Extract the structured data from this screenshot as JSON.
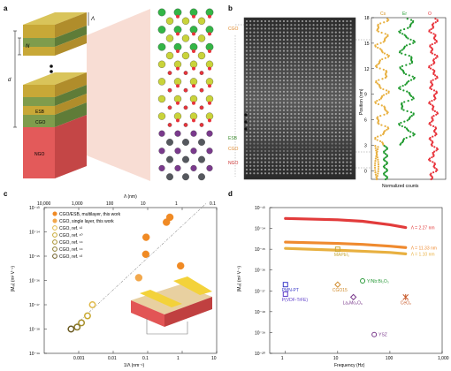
{
  "panels": {
    "a": {
      "letter": "a",
      "labels": {
        "lambda": "Λ",
        "n": "N",
        "d": "d",
        "esb": "ESB",
        "cgo": "CGO",
        "ngo": "NGO"
      }
    },
    "b": {
      "letter": "b",
      "left_labels": {
        "cgo_top": "CGO",
        "esb": "ESB",
        "cgo_bottom": "CGO",
        "ngo": "NGO"
      },
      "legend": {
        "cs": "Cs",
        "er": "Er",
        "o": "O"
      },
      "colors": {
        "cs": "#e8b040",
        "er": "#1f9a2e",
        "o": "#e8343c"
      },
      "ylabel": "Position (nm)",
      "xlabel": "Normalized counts",
      "yticks": [
        "18",
        "15",
        "12",
        "9",
        "6",
        "3",
        "0"
      ]
    },
    "c": {
      "letter": "c",
      "top_axis_label": "Λ (nm)",
      "top_ticks": [
        "10,000",
        "1,000",
        "100",
        "10",
        "1",
        "0.1"
      ],
      "ylabel": "|Mₑₗ| (m² V⁻¹)",
      "xlabel": "1/Λ (nm⁻¹)",
      "yticks": [
        "10⁻¹³",
        "10⁻¹⁴",
        "10⁻¹⁵",
        "10⁻¹⁶",
        "10⁻¹⁷",
        "10⁻¹⁸",
        "10⁻¹⁹"
      ],
      "xticks": [
        "0.001",
        "0.01",
        "0.1",
        "1",
        "10"
      ],
      "legend": [
        "CGO/ESB, multilayer, this work",
        "CGO, single layer, this work",
        "CGO, ref. ¹²",
        "CGO, ref. ¹⁰",
        "CGO, ref. ¹⁴",
        "CGO, ref. ¹⁴",
        "CGO, ref. ¹³"
      ]
    },
    "d": {
      "letter": "d",
      "ylabel": "|Mₑₗ| (m² V⁻¹)",
      "xlabel": "Frequency (Hz)",
      "yticks": [
        "10⁻¹³",
        "10⁻¹⁴",
        "10⁻¹⁵",
        "10⁻¹⁶",
        "10⁻¹⁷",
        "10⁻¹⁸",
        "10⁻¹⁹",
        "10⁻²⁰"
      ],
      "xticks": [
        "1",
        "10",
        "100",
        "1,000"
      ],
      "curves": [
        {
          "label": "Λ = 2.27 nm",
          "color": "#e23b3b"
        },
        {
          "label": "Λ = 11.33 nm",
          "color": "#ef8a2f"
        },
        {
          "label": "Λ = 1.10 nm",
          "color": "#e8b040"
        }
      ],
      "materials": {
        "mapbi3": "MAPbI₃",
        "pmnpt": "PMN-PT",
        "pvdf": "P(VDF-TrFE)",
        "cgo15": "CGO15",
        "ynbo": "Y/Nb:Bi₂O₃",
        "lamo": "La₂Mo₂O₉",
        "ceo2": "CeO₂",
        "ysz": "YSZ"
      }
    }
  },
  "chart_data": [
    {
      "type": "scatter",
      "title": "",
      "xlabel": "1/Λ (nm⁻¹)",
      "ylabel": "|Mₑₗ| (m² V⁻¹)",
      "xscale": "log",
      "yscale": "log",
      "xlim": [
        0.0001,
        10
      ],
      "ylim": [
        1e-19,
        1e-13
      ],
      "series": [
        {
          "name": "CGO/ESB, multilayer, this work",
          "x": [
            0.088,
            0.09,
            0.35,
            0.44,
            0.9
          ],
          "y": [
            1.2e-15,
            6e-15,
            2.5e-14,
            4e-14,
            4e-16
          ]
        },
        {
          "name": "CGO, single layer, this work",
          "x": [
            0.055
          ],
          "y": [
            1.3e-16
          ]
        },
        {
          "name": "CGO, ref. ¹²",
          "x": [
            0.0025
          ],
          "y": [
            1e-17
          ]
        },
        {
          "name": "CGO, ref. ¹⁰",
          "x": [
            0.0018
          ],
          "y": [
            3.5e-18
          ]
        },
        {
          "name": "CGO, ref. ¹⁴",
          "x": [
            0.0012
          ],
          "y": [
            1.8e-18
          ]
        },
        {
          "name": "CGO, ref. ¹⁴",
          "x": [
            0.0009
          ],
          "y": [
            1.2e-18
          ]
        },
        {
          "name": "CGO, ref. ¹³",
          "x": [
            0.0006
          ],
          "y": [
            1e-18
          ]
        }
      ]
    },
    {
      "type": "line",
      "title": "",
      "xlabel": "Frequency (Hz)",
      "ylabel": "|Mₑₗ| (m² V⁻¹)",
      "xscale": "log",
      "yscale": "log",
      "xlim": [
        0.5,
        1000
      ],
      "ylim": [
        1e-20,
        1e-13
      ],
      "series": [
        {
          "name": "Λ = 2.27 nm",
          "x": [
            1,
            10,
            30,
            100,
            200
          ],
          "y": [
            3e-14,
            2.6e-14,
            2.2e-14,
            1.5e-14,
            1.1e-14
          ]
        },
        {
          "name": "Λ = 11.33 nm",
          "x": [
            1,
            10,
            30,
            100,
            200
          ],
          "y": [
            2.2e-15,
            1.9e-15,
            1.7e-15,
            1.4e-15,
            1.2e-15
          ]
        },
        {
          "name": "Λ = 1.10 nm",
          "x": [
            1,
            10,
            30,
            100,
            200
          ],
          "y": [
            1.1e-15,
            9e-16,
            8e-16,
            7e-16,
            6e-16
          ]
        }
      ],
      "points": [
        {
          "name": "MAPbI₃",
          "x": 10,
          "y": 1e-15
        },
        {
          "name": "PMN-PT",
          "x": 1,
          "y": 2e-17
        },
        {
          "name": "P(VDF-TrFE)",
          "x": 1,
          "y": 7e-18
        },
        {
          "name": "CGO15",
          "x": 10,
          "y": 2e-17
        },
        {
          "name": "Y/Nb:Bi₂O₃",
          "x": 30,
          "y": 3e-17
        },
        {
          "name": "La₂Mo₂O₉",
          "x": 20,
          "y": 5e-18
        },
        {
          "name": "CeO₂",
          "x": 200,
          "y": 5e-18
        },
        {
          "name": "YSZ",
          "x": 50,
          "y": 8e-20
        }
      ]
    }
  ]
}
